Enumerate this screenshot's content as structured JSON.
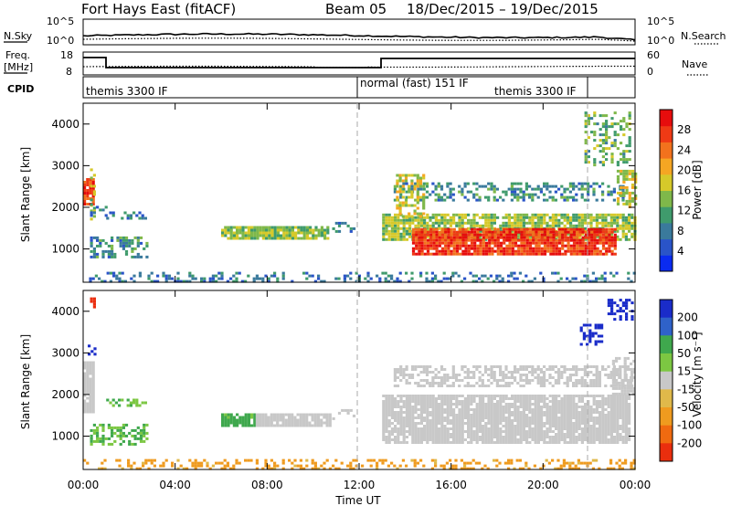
{
  "header": {
    "station": "Fort Hays East (fitACF)",
    "beam": "Beam 05",
    "date_range": "18/Dec/2015 – 19/Dec/2015"
  },
  "noise_panel": {
    "left_label": "N.Sky",
    "right_label": "N.Search",
    "left_ticks": [
      "10^5",
      "10^0"
    ],
    "right_ticks": [
      "10^5",
      "10^0"
    ]
  },
  "freq_panel": {
    "left_label_top": "Freq.",
    "left_label_bottom": "[MHz]",
    "right_label": "Nave",
    "left_ticks": [
      "18",
      "8"
    ],
    "right_ticks": [
      "60",
      "0"
    ]
  },
  "cpid_panel": {
    "label": "CPID",
    "modes": [
      {
        "text": "themis 3300 IF"
      },
      {
        "text": "normal (fast) 151 IF"
      },
      {
        "text": "themis 3300 IF"
      }
    ]
  },
  "x_axis": {
    "label": "Time UT",
    "ticks": [
      "00:00",
      "04:00",
      "08:00",
      "12:00",
      "16:00",
      "20:00",
      "00:00"
    ]
  },
  "power_colorbar": {
    "label": "Power [dB]",
    "ticks": [
      "4",
      "8",
      "12",
      "16",
      "20",
      "24",
      "28"
    ],
    "colors": [
      "#0a2bf0",
      "#2a54c8",
      "#3a7a9c",
      "#3f9b6c",
      "#7fb84a",
      "#d6c92a",
      "#f5a623",
      "#f2721d",
      "#ef3a15",
      "#e60d0d"
    ]
  },
  "velocity_colorbar": {
    "label": "Velocity [m s⁻¹]",
    "ticks": [
      "200",
      "100",
      "50",
      "15",
      "-15",
      "-50",
      "-100",
      "-200"
    ],
    "colors": [
      "#1a2cc9",
      "#2f62c9",
      "#3fa84d",
      "#7cc742",
      "#c8c8c8",
      "#e0b94a",
      "#ef9b1f",
      "#f06a10",
      "#ea2e0e"
    ]
  },
  "chart_data": [
    {
      "type": "heatmap",
      "panel": "power",
      "title": "",
      "xlabel": "Time UT",
      "ylabel": "Slant Range [km]",
      "xlim_hours": [
        0,
        24
      ],
      "ylim_km": [
        200,
        4500
      ],
      "y_ticks": [
        1000,
        2000,
        3000,
        4000
      ],
      "colorbar": {
        "label": "Power [dB]",
        "range": [
          0,
          30
        ]
      },
      "regions": [
        {
          "t0": 0.0,
          "t1": 0.4,
          "r0": 2100,
          "r1": 2700,
          "value": 26,
          "density": 0.85
        },
        {
          "t0": 0.3,
          "t1": 0.5,
          "r0": 1500,
          "r1": 3000,
          "value": 14,
          "density": 0.4
        },
        {
          "t0": 0.3,
          "t1": 1.2,
          "r0": 1800,
          "r1": 2100,
          "value": 8,
          "density": 0.25
        },
        {
          "t0": 1.0,
          "t1": 2.7,
          "r0": 1750,
          "r1": 1900,
          "value": 8,
          "density": 0.45
        },
        {
          "t0": 0.3,
          "t1": 2.8,
          "r0": 800,
          "r1": 1300,
          "value": 9,
          "density": 0.45
        },
        {
          "t0": 6.0,
          "t1": 10.7,
          "r0": 1250,
          "r1": 1550,
          "value": 14,
          "density": 0.9
        },
        {
          "t0": 10.7,
          "t1": 11.8,
          "r0": 1400,
          "r1": 1650,
          "value": 8,
          "density": 0.45
        },
        {
          "t0": 0.0,
          "t1": 24.0,
          "r0": 200,
          "r1": 450,
          "value": 7,
          "density": 0.3
        },
        {
          "t0": 13.0,
          "t1": 24.0,
          "r0": 1250,
          "r1": 1850,
          "value": 14,
          "density": 0.8
        },
        {
          "t0": 14.3,
          "t1": 23.2,
          "r0": 850,
          "r1": 1500,
          "value": 26,
          "density": 0.92
        },
        {
          "t0": 13.5,
          "t1": 23.5,
          "r0": 2200,
          "r1": 2600,
          "value": 9,
          "density": 0.4
        },
        {
          "t0": 13.6,
          "t1": 14.8,
          "r0": 1800,
          "r1": 2800,
          "value": 16,
          "density": 0.55
        },
        {
          "t0": 23.2,
          "t1": 24.0,
          "r0": 2000,
          "r1": 2900,
          "value": 16,
          "density": 0.6
        },
        {
          "t0": 21.8,
          "t1": 23.8,
          "r0": 3000,
          "r1": 4300,
          "value": 12,
          "density": 0.35
        }
      ]
    },
    {
      "type": "heatmap",
      "panel": "velocity",
      "title": "",
      "xlabel": "Time UT",
      "ylabel": "Slant Range [km]",
      "xlim_hours": [
        0,
        24
      ],
      "ylim_km": [
        200,
        4500
      ],
      "y_ticks": [
        1000,
        2000,
        3000,
        4000
      ],
      "colorbar": {
        "label": "Velocity [m s⁻¹]",
        "range": [
          -250,
          250
        ]
      },
      "regions": [
        {
          "t0": 0.0,
          "t1": 0.4,
          "r0": 1600,
          "r1": 2800,
          "value": 0,
          "density": 0.85
        },
        {
          "t0": 0.2,
          "t1": 0.5,
          "r0": 2900,
          "r1": 3200,
          "value": 200,
          "density": 0.5
        },
        {
          "t0": 0.3,
          "t1": 0.6,
          "r0": 4100,
          "r1": 4400,
          "value": -200,
          "density": 0.6
        },
        {
          "t0": 1.0,
          "t1": 2.7,
          "r0": 1750,
          "r1": 1900,
          "value": 30,
          "density": 0.5
        },
        {
          "t0": 0.3,
          "t1": 2.8,
          "r0": 800,
          "r1": 1300,
          "value": 35,
          "density": 0.45
        },
        {
          "t0": 6.0,
          "t1": 7.5,
          "r0": 1250,
          "r1": 1550,
          "value": 40,
          "density": 0.9
        },
        {
          "t0": 7.5,
          "t1": 10.7,
          "r0": 1250,
          "r1": 1550,
          "value": 0,
          "density": 0.9
        },
        {
          "t0": 10.7,
          "t1": 11.8,
          "r0": 1400,
          "r1": 1650,
          "value": 0,
          "density": 0.4
        },
        {
          "t0": 0.0,
          "t1": 24.0,
          "r0": 200,
          "r1": 450,
          "value": -40,
          "density": 0.35
        },
        {
          "t0": 13.0,
          "t1": 23.8,
          "r0": 850,
          "r1": 2000,
          "value": 0,
          "density": 0.88
        },
        {
          "t0": 13.5,
          "t1": 23.8,
          "r0": 2200,
          "r1": 2700,
          "value": 0,
          "density": 0.55
        },
        {
          "t0": 23.0,
          "t1": 24.0,
          "r0": 2000,
          "r1": 2900,
          "value": 0,
          "density": 0.6
        },
        {
          "t0": 21.6,
          "t1": 22.5,
          "r0": 3200,
          "r1": 3700,
          "value": 200,
          "density": 0.5
        },
        {
          "t0": 22.8,
          "t1": 23.9,
          "r0": 3800,
          "r1": 4300,
          "value": 180,
          "density": 0.55
        }
      ]
    }
  ]
}
